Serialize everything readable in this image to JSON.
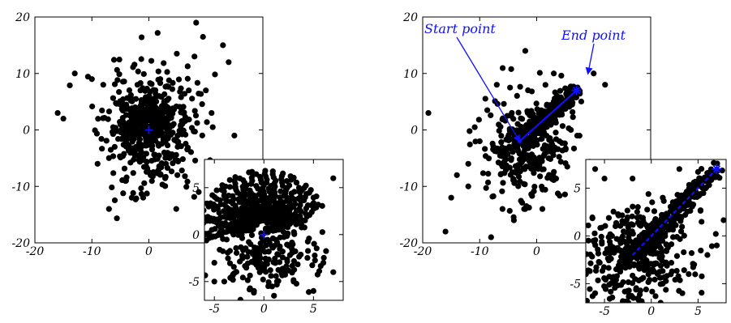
{
  "chart_data": [
    {
      "type": "scatter",
      "panel": "left-main",
      "title": "",
      "xlabel": "",
      "ylabel": "",
      "xlim": [
        -20,
        20
      ],
      "ylim": [
        -20,
        20
      ],
      "xticks": [
        -20,
        -10,
        0
      ],
      "yticks": [
        -20,
        -10,
        0,
        10,
        20
      ],
      "xtick_labels": [
        "-20",
        "-10",
        "0"
      ],
      "ytick_labels": [
        "-20",
        "-10",
        "0",
        "10",
        "20"
      ],
      "grid": false,
      "point_color": "#000000",
      "marker_color": "#1010ff",
      "seed": 11,
      "cloud": {
        "n": 380,
        "cx": 0,
        "cy": 0,
        "sx": 4.0,
        "sy": 5.5
      },
      "core": {
        "n": 180,
        "cx": 0,
        "cy": 2,
        "sx": 2.2,
        "sy": 2.5
      },
      "points": [
        [
          -16,
          3
        ],
        [
          -15,
          2
        ],
        [
          -13,
          10
        ],
        [
          -10,
          9
        ],
        [
          -8,
          8
        ],
        [
          -7,
          -14
        ],
        [
          -9,
          -6
        ],
        [
          -6,
          -3
        ],
        [
          -4,
          -2
        ],
        [
          -4,
          -9
        ],
        [
          -3,
          -12
        ],
        [
          -1,
          -12
        ],
        [
          3,
          -6
        ],
        [
          6,
          3
        ],
        [
          7,
          7
        ],
        [
          8,
          13
        ],
        [
          10,
          7
        ],
        [
          13,
          15
        ],
        [
          14,
          12
        ],
        [
          15,
          -1
        ],
        [
          11,
          3
        ],
        [
          5,
          -8
        ],
        [
          -5,
          1
        ],
        [
          -2,
          8
        ],
        [
          2,
          9
        ]
      ],
      "markers": [
        {
          "x": 0,
          "y": 0,
          "shape": "plus"
        }
      ]
    },
    {
      "type": "scatter",
      "panel": "left-inset",
      "title": "",
      "xlim": [
        -6,
        8
      ],
      "ylim": [
        -7,
        8
      ],
      "xticks": [
        -5,
        0,
        5
      ],
      "yticks": [
        -5,
        0,
        5
      ],
      "xtick_labels": [
        "-5",
        "0",
        "5"
      ],
      "ytick_labels": [
        "-5",
        "0",
        "5"
      ],
      "grid": false,
      "point_color": "#000000",
      "marker_color": "#1010ff",
      "seed": 23,
      "rings": {
        "cx": 0,
        "cy": 0.3,
        "r_min": 1.2,
        "r_max": 6.5,
        "rays": 22,
        "per_ray": 18,
        "angle_from": 0.15,
        "angle_to": 2.99
      },
      "cloud": {
        "n": 220,
        "cx": 0,
        "cy": -2,
        "sx": 2.6,
        "sy": 2.3
      },
      "points": [
        [
          -5,
          -5
        ],
        [
          -5,
          -3
        ],
        [
          -6,
          0
        ],
        [
          7,
          6
        ],
        [
          6,
          -3
        ],
        [
          7,
          -4
        ],
        [
          -4,
          -5
        ],
        [
          -1,
          -6
        ],
        [
          3,
          -5
        ],
        [
          5,
          -6
        ]
      ],
      "markers": [
        {
          "x": 0,
          "y": 0,
          "shape": "plus"
        }
      ]
    },
    {
      "type": "scatter",
      "panel": "right-main",
      "title": "",
      "xlim": [
        -20,
        20
      ],
      "ylim": [
        -20,
        20
      ],
      "xticks": [
        -20,
        -10,
        0
      ],
      "yticks": [
        -20,
        -10,
        0,
        10,
        20
      ],
      "xtick_labels": [
        "-20",
        "-10",
        "0"
      ],
      "ytick_labels": [
        "-20",
        "-10",
        "0",
        "10",
        "20"
      ],
      "grid": false,
      "point_color": "#000000",
      "marker_color": "#1010ff",
      "seed": 37,
      "cloud": {
        "n": 300,
        "cx": -1.5,
        "cy": -3,
        "sx": 3.8,
        "sy": 4.5
      },
      "band": {
        "from": [
          -3,
          -2
        ],
        "to": [
          7,
          7
        ],
        "n": 260,
        "spread": 0.7
      },
      "points": [
        [
          -19,
          3
        ],
        [
          -16,
          -18
        ],
        [
          -15,
          -12
        ],
        [
          -14,
          -8
        ],
        [
          -12,
          -6
        ],
        [
          -8,
          -19
        ],
        [
          -6,
          -14
        ],
        [
          -4,
          -16
        ],
        [
          -2,
          14
        ],
        [
          3,
          10
        ],
        [
          10,
          10
        ],
        [
          12,
          8
        ],
        [
          -10,
          -2
        ],
        [
          -12,
          -10
        ],
        [
          4,
          -2
        ],
        [
          6,
          0
        ],
        [
          -7,
          8
        ],
        [
          -2,
          -14
        ],
        [
          1,
          -14
        ]
      ],
      "segments": [
        {
          "from": [
            -3,
            -2
          ],
          "to": [
            7,
            7
          ],
          "style": "solid"
        }
      ],
      "markers": [
        {
          "x": 7,
          "y": 7,
          "shape": "star"
        },
        {
          "x": -3,
          "y": -2,
          "shape": "dot"
        }
      ],
      "annotations": [
        {
          "text": "Start point",
          "at": [
            -3,
            -2
          ]
        },
        {
          "text": "End point",
          "at": [
            9,
            10
          ]
        }
      ]
    },
    {
      "type": "scatter",
      "panel": "right-inset",
      "title": "",
      "xlim": [
        -7,
        8
      ],
      "ylim": [
        -7,
        8
      ],
      "xticks": [
        -5,
        0,
        5
      ],
      "yticks": [
        -5,
        0,
        5
      ],
      "xtick_labels": [
        "-5",
        "0",
        "5"
      ],
      "ytick_labels": [
        "-5",
        "0",
        "5"
      ],
      "grid": false,
      "point_color": "#000000",
      "marker_color": "#1010ff",
      "seed": 53,
      "cloud": {
        "n": 360,
        "cx": -2,
        "cy": -2,
        "sx": 3.2,
        "sy": 2.6
      },
      "band": {
        "from": [
          -3,
          -3
        ],
        "to": [
          7,
          7
        ],
        "n": 320,
        "spread": 0.45
      },
      "points": [
        [
          -6,
          7
        ],
        [
          -6,
          -6
        ],
        [
          -5,
          6
        ],
        [
          7,
          -1
        ],
        [
          6,
          -2
        ],
        [
          4,
          -4
        ],
        [
          1,
          -7
        ],
        [
          -1,
          -7
        ],
        [
          -3,
          -7
        ],
        [
          3,
          7
        ],
        [
          -2,
          6
        ]
      ],
      "segments": [
        {
          "from": [
            -2,
            -2
          ],
          "to": [
            7,
            7
          ],
          "style": "dashed"
        }
      ],
      "markers": [
        {
          "x": 7,
          "y": 7,
          "shape": "star"
        }
      ]
    }
  ]
}
